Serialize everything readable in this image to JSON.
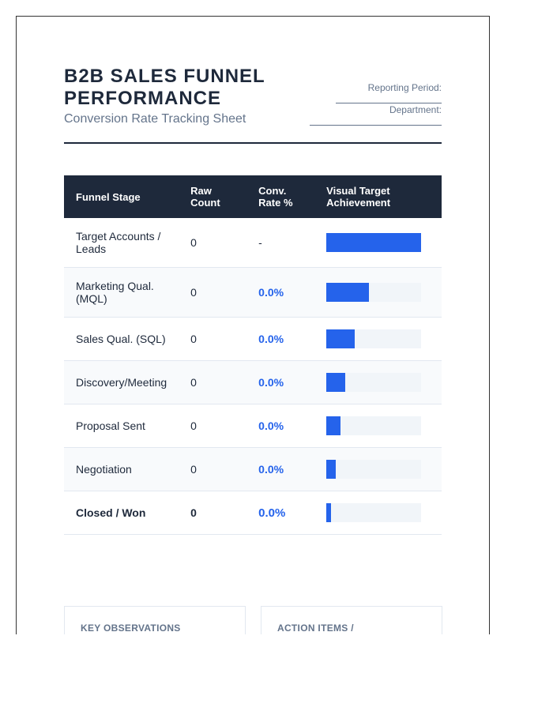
{
  "header": {
    "title": "B2B SALES FUNNEL PERFORMANCE",
    "subtitle": "Conversion Rate Tracking Sheet",
    "fields": [
      "Reporting Period:",
      "Department:"
    ]
  },
  "table": {
    "columns": [
      "Funnel Stage",
      "Raw Count",
      "Conv. Rate %",
      "Visual Target Achievement"
    ],
    "rows": [
      [
        "Target Accounts / Leads",
        0,
        "-"
      ],
      [
        "Marketing Qual. (MQL)",
        0,
        "0.0%"
      ],
      [
        "Sales Qual. (SQL)",
        0,
        "0.0%"
      ],
      [
        "Discovery/Meeting",
        0,
        "0.0%"
      ],
      [
        "Proposal Sent",
        0,
        "0.0%"
      ],
      [
        "Negotiation",
        0,
        "0.0%"
      ],
      [
        "Closed / Won",
        0,
        "0.0%"
      ]
    ]
  },
  "sections": [
    "KEY OBSERVATIONS",
    "ACTION ITEMS /"
  ]
}
